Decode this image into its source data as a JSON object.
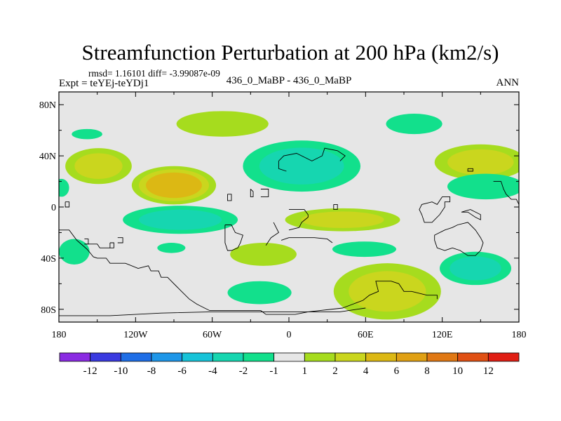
{
  "chart_data": {
    "type": "heatmap",
    "title": "Streamfunction Perturbation at 200 hPa (km2/s)",
    "stats_text": "rmsd= 1.16101  diff= -3.99087e-09",
    "left_label": "Expt = teYEj-teYDj1",
    "center_label": "436_0_MaBP - 436_0_MaBP",
    "right_label": "ANN",
    "x_ticks": [
      {
        "lon": -180,
        "label": "180"
      },
      {
        "lon": -120,
        "label": "120W"
      },
      {
        "lon": -60,
        "label": "60W"
      },
      {
        "lon": 0,
        "label": "0"
      },
      {
        "lon": 60,
        "label": "60E"
      },
      {
        "lon": 120,
        "label": "120E"
      },
      {
        "lon": 180,
        "label": "180"
      }
    ],
    "y_ticks": [
      {
        "lat": 80,
        "label": "80N"
      },
      {
        "lat": 40,
        "label": "40N"
      },
      {
        "lat": 0,
        "label": "0"
      },
      {
        "lat": -40,
        "label": "40S"
      },
      {
        "lat": -80,
        "label": "80S"
      }
    ],
    "xlim": [
      -180,
      180
    ],
    "ylim": [
      -90,
      90
    ],
    "colorbar": {
      "colors": [
        "#8a2be2",
        "#3a3ae0",
        "#1f6ee6",
        "#1e96e8",
        "#17c3d8",
        "#16d6b0",
        "#12e08c",
        "#e6e6e6",
        "#a6dc1e",
        "#cad61e",
        "#dcb814",
        "#e0a014",
        "#e07814",
        "#e05014",
        "#e01e14"
      ],
      "labels": [
        "-12",
        "-10",
        "-8",
        "-6",
        "-4",
        "-2",
        "-1",
        "1",
        "2",
        "4",
        "6",
        "8",
        "10",
        "12"
      ]
    },
    "features": [
      {
        "lon": -158,
        "lat": 57,
        "rx": 12,
        "ry": 4,
        "levels": [
          -1
        ]
      },
      {
        "lon": -149,
        "lat": 32,
        "rx": 26,
        "ry": 14,
        "levels": [
          2,
          4
        ]
      },
      {
        "lon": -178,
        "lat": 15,
        "rx": 6,
        "ry": 7,
        "levels": [
          -1
        ]
      },
      {
        "lon": -90,
        "lat": 17,
        "rx": 33,
        "ry": 15,
        "levels": [
          2,
          4,
          6
        ]
      },
      {
        "lon": -52,
        "lat": 65,
        "rx": 36,
        "ry": 10,
        "levels": [
          2
        ]
      },
      {
        "lon": 10,
        "lat": 32,
        "rx": 46,
        "ry": 20,
        "levels": [
          -1,
          -2
        ]
      },
      {
        "lon": 98,
        "lat": 65,
        "rx": 22,
        "ry": 8,
        "levels": [
          -1
        ]
      },
      {
        "lon": 150,
        "lat": 35,
        "rx": 36,
        "ry": 14,
        "levels": [
          2,
          4
        ]
      },
      {
        "lon": 154,
        "lat": 16,
        "rx": 30,
        "ry": 10,
        "levels": [
          -1
        ]
      },
      {
        "lon": -85,
        "lat": -10,
        "rx": 45,
        "ry": 11,
        "levels": [
          -1,
          -2
        ]
      },
      {
        "lon": 42,
        "lat": -10,
        "rx": 45,
        "ry": 9,
        "levels": [
          2,
          4
        ]
      },
      {
        "lon": -168,
        "lat": -35,
        "rx": 12,
        "ry": 10,
        "levels": [
          -1
        ]
      },
      {
        "lon": -92,
        "lat": -32,
        "rx": 11,
        "ry": 4,
        "levels": [
          -1
        ]
      },
      {
        "lon": -20,
        "lat": -37,
        "rx": 26,
        "ry": 9,
        "levels": [
          2
        ]
      },
      {
        "lon": 59,
        "lat": -33,
        "rx": 25,
        "ry": 6,
        "levels": [
          -1
        ]
      },
      {
        "lon": 146,
        "lat": -48,
        "rx": 28,
        "ry": 13,
        "levels": [
          -1,
          -2
        ]
      },
      {
        "lon": -23,
        "lat": -67,
        "rx": 25,
        "ry": 9,
        "levels": [
          -1
        ]
      },
      {
        "lon": 77,
        "lat": -66,
        "rx": 42,
        "ry": 22,
        "levels": [
          2,
          4
        ]
      }
    ],
    "coastlines": [
      [
        [
          -180,
          -18
        ],
        [
          -172,
          -18
        ],
        [
          -166,
          -26
        ],
        [
          -158,
          -33
        ],
        [
          -153,
          -39
        ],
        [
          -150,
          -40
        ],
        [
          -143,
          -40
        ],
        [
          -140,
          -44
        ],
        [
          -128,
          -44
        ],
        [
          -118,
          -48
        ],
        [
          -110,
          -46
        ],
        [
          -108,
          -50
        ],
        [
          -102,
          -50
        ],
        [
          -100,
          -55
        ],
        [
          -95,
          -55
        ],
        [
          -88,
          -62
        ],
        [
          -84,
          -66
        ],
        [
          -78,
          -72
        ],
        [
          -72,
          -76
        ],
        [
          -66,
          -79
        ],
        [
          -62,
          -81
        ],
        [
          -22,
          -81
        ],
        [
          -18,
          -84
        ],
        [
          5,
          -84
        ],
        [
          15,
          -82
        ],
        [
          42,
          -79
        ],
        [
          50,
          -76
        ],
        [
          58,
          -73
        ],
        [
          63,
          -69
        ],
        [
          70,
          -66
        ],
        [
          68,
          -58
        ],
        [
          80,
          -58
        ],
        [
          86,
          -60
        ],
        [
          90,
          -66
        ],
        [
          96,
          -66
        ],
        [
          108,
          -69
        ],
        [
          116,
          -69
        ],
        [
          116,
          -72
        ]
      ],
      [
        [
          -180,
          -85
        ],
        [
          -140,
          -85
        ],
        [
          -100,
          -83
        ],
        [
          -60,
          -82
        ],
        [
          -20,
          -82
        ],
        [
          20,
          -82
        ],
        [
          40,
          -82
        ],
        [
          60,
          -79
        ]
      ],
      [
        [
          -48,
          10
        ],
        [
          -45,
          10
        ],
        [
          -45,
          5
        ],
        [
          -48,
          5
        ],
        [
          -48,
          10
        ]
      ],
      [
        [
          -50,
          -14
        ],
        [
          -45,
          -14
        ],
        [
          -42,
          -20
        ],
        [
          -36,
          -22
        ],
        [
          -38,
          -28
        ],
        [
          -40,
          -32
        ],
        [
          -45,
          -34
        ],
        [
          -48,
          -34
        ],
        [
          -50,
          -28
        ],
        [
          -50,
          -20
        ],
        [
          -50,
          -14
        ]
      ],
      [
        [
          -30,
          14
        ],
        [
          -28,
          12
        ],
        [
          -28,
          8
        ],
        [
          -30,
          8
        ],
        [
          -30,
          14
        ]
      ],
      [
        [
          -22,
          14
        ],
        [
          -16,
          14
        ],
        [
          -16,
          8
        ],
        [
          -22,
          8
        ]
      ],
      [
        [
          -12,
          -12
        ],
        [
          -8,
          -20
        ],
        [
          -14,
          -24
        ],
        [
          -18,
          -30
        ]
      ],
      [
        [
          -6,
          -26
        ],
        [
          0,
          -24
        ],
        [
          10,
          -24
        ],
        [
          20,
          -24
        ],
        [
          30,
          -25
        ],
        [
          34,
          -28
        ]
      ],
      [
        [
          0,
          -2
        ],
        [
          12,
          -2
        ],
        [
          15,
          -6
        ],
        [
          15,
          -8
        ],
        [
          10,
          -12
        ],
        [
          8,
          -16
        ],
        [
          0,
          -18
        ]
      ],
      [
        [
          35,
          2
        ],
        [
          38,
          2
        ],
        [
          38,
          -2
        ],
        [
          35,
          -2
        ],
        [
          35,
          2
        ]
      ],
      [
        [
          -8,
          36
        ],
        [
          -4,
          40
        ],
        [
          6,
          42
        ],
        [
          18,
          36
        ],
        [
          26,
          40
        ],
        [
          28,
          46
        ],
        [
          38,
          44
        ],
        [
          44,
          40
        ],
        [
          40,
          36
        ]
      ],
      [
        [
          -8,
          36
        ],
        [
          -8,
          30
        ],
        [
          -2,
          28
        ]
      ],
      [
        [
          140,
          30
        ],
        [
          144,
          30
        ],
        [
          144,
          28
        ],
        [
          140,
          28
        ],
        [
          140,
          30
        ]
      ],
      [
        [
          128,
          -16
        ],
        [
          132,
          -14
        ],
        [
          140,
          -12
        ],
        [
          142,
          -14
        ],
        [
          146,
          -18
        ],
        [
          150,
          -24
        ],
        [
          152,
          -28
        ],
        [
          150,
          -34
        ],
        [
          146,
          -38
        ],
        [
          140,
          -38
        ],
        [
          134,
          -34
        ],
        [
          128,
          -32
        ],
        [
          122,
          -34
        ],
        [
          116,
          -32
        ],
        [
          114,
          -26
        ],
        [
          114,
          -22
        ],
        [
          122,
          -18
        ],
        [
          128,
          -16
        ]
      ],
      [
        [
          -175,
          4
        ],
        [
          -172,
          4
        ],
        [
          -172,
          0
        ],
        [
          -175,
          0
        ],
        [
          -175,
          4
        ]
      ],
      [
        [
          -160,
          -25
        ],
        [
          -157,
          -25
        ],
        [
          -157,
          -29
        ],
        [
          -160,
          -29
        ]
      ],
      [
        [
          -140,
          -28
        ],
        [
          -137,
          -28
        ],
        [
          -137,
          -32
        ],
        [
          -140,
          -32
        ],
        [
          -140,
          -28
        ]
      ],
      [
        [
          -134,
          -24
        ],
        [
          -130,
          -24
        ],
        [
          -130,
          -28
        ],
        [
          -134,
          -28
        ]
      ],
      [
        [
          -160,
          -29
        ],
        [
          -150,
          -29
        ],
        [
          -148,
          -32
        ],
        [
          -140,
          -32
        ]
      ],
      [
        [
          120,
          8
        ],
        [
          126,
          8
        ],
        [
          126,
          4
        ],
        [
          122,
          4
        ],
        [
          122,
          0
        ],
        [
          118,
          -6
        ],
        [
          112,
          -12
        ],
        [
          106,
          -12
        ],
        [
          104,
          -6
        ],
        [
          102,
          -2
        ],
        [
          104,
          2
        ],
        [
          112,
          4
        ],
        [
          116,
          2
        ],
        [
          120,
          8
        ]
      ],
      [
        [
          135,
          -4
        ],
        [
          140,
          -4
        ],
        [
          146,
          -8
        ],
        [
          150,
          -10
        ],
        [
          150,
          -6
        ],
        [
          142,
          -2
        ],
        [
          135,
          -4
        ]
      ],
      [
        [
          160,
          20
        ],
        [
          166,
          20
        ],
        [
          168,
          14
        ],
        [
          170,
          10
        ],
        [
          174,
          6
        ],
        [
          178,
          6
        ],
        [
          180,
          2
        ]
      ]
    ]
  }
}
